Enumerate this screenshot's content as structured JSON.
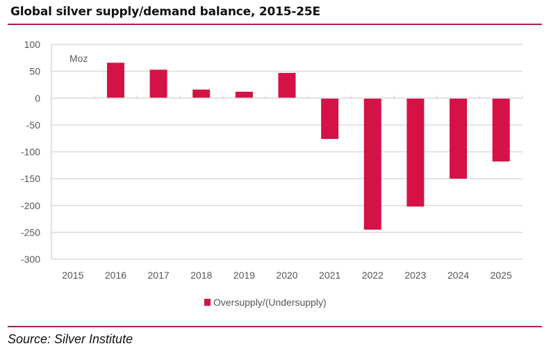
{
  "title": "Global silver supply/demand balance, 2015-25E",
  "source": "Source: Silver Institute",
  "colors": {
    "bar": "#d41245",
    "rule": "#a8214c",
    "grid": "#d9d9d9"
  },
  "chart_data": {
    "type": "bar",
    "title": "Global silver supply/demand balance, 2015-25E",
    "unit_label": "Moz",
    "xlabel": "",
    "ylabel": "Moz",
    "categories": [
      "2015",
      "2016",
      "2017",
      "2018",
      "2019",
      "2020",
      "2021",
      "2022",
      "2023",
      "2024",
      "2025"
    ],
    "series": [
      {
        "name": "Oversupply/(Undersupply)",
        "values": [
          0,
          66,
          53,
          16,
          12,
          47,
          -76,
          -245,
          -202,
          -150,
          -118
        ]
      }
    ],
    "ylim": [
      -300,
      100
    ],
    "yticks": [
      100,
      50,
      0,
      -50,
      -100,
      -150,
      -200,
      -250,
      -300
    ],
    "grid": true,
    "legend_position": "bottom-center"
  }
}
